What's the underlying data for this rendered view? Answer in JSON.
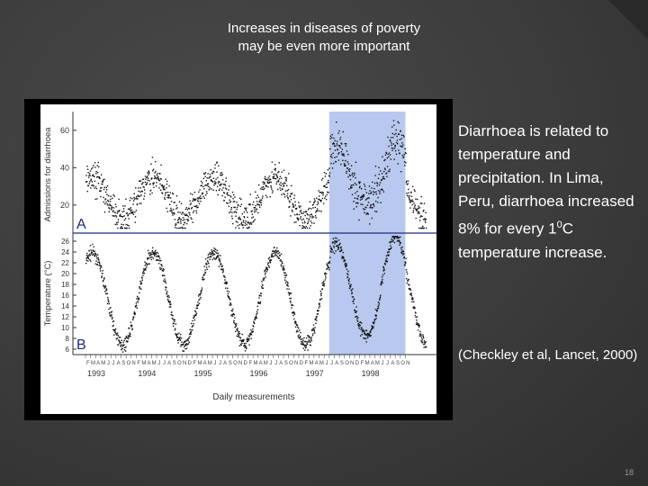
{
  "slide": {
    "title_line1": "Increases in diseases of poverty",
    "title_line2": "may be even more important",
    "body_text": "Diarrhoea is related to temperature and precipitation.  In Lima, Peru, diarrhoea increased 8% for every 1",
    "body_sup": "0",
    "body_text_end": "C temperature increase.",
    "citation": "(Checkley et al, Lancet, 2000)",
    "page_number": "18"
  },
  "chart_data": [
    {
      "type": "scatter",
      "panel_label": "A",
      "ylabel": "Admissions for diarrhoea",
      "ylim": [
        5,
        70
      ],
      "yticks": [
        20,
        40,
        60
      ],
      "x_range_months": [
        0,
        67
      ],
      "highlight_months": [
        48,
        63
      ],
      "series": [
        {
          "name": "Daily admissions",
          "pattern": "seasonal, peaks in Feb–Mar around 40, troughs near 15; El Niño spike 1997–1998 to ~60"
        }
      ]
    },
    {
      "type": "scatter",
      "panel_label": "B",
      "ylabel": "Temperature (°C)",
      "ylim": [
        5,
        27
      ],
      "yticks": [
        6,
        8,
        10,
        12,
        14,
        16,
        18,
        20,
        22,
        24,
        26
      ],
      "x_range_months": [
        0,
        67
      ],
      "highlight_months": [
        48,
        63
      ],
      "series": [
        {
          "name": "Daily temperature",
          "pattern": "seasonal, summer peaks ~24–25, winter troughs ~7; 1998 peak ~27"
        }
      ]
    }
  ],
  "xaxis": {
    "month_ticks_label": "FMAMJJASOND",
    "first_year_months": "FMAMJJASON",
    "last_year_months": "FMAMJJASON",
    "years": [
      "1993",
      "1994",
      "1995",
      "1996",
      "1997",
      "1998"
    ],
    "xlabel": "Daily measurements"
  },
  "colors": {
    "highlight": "#b8c8ee",
    "points": "#111111",
    "slide_text": "#ffffff"
  }
}
